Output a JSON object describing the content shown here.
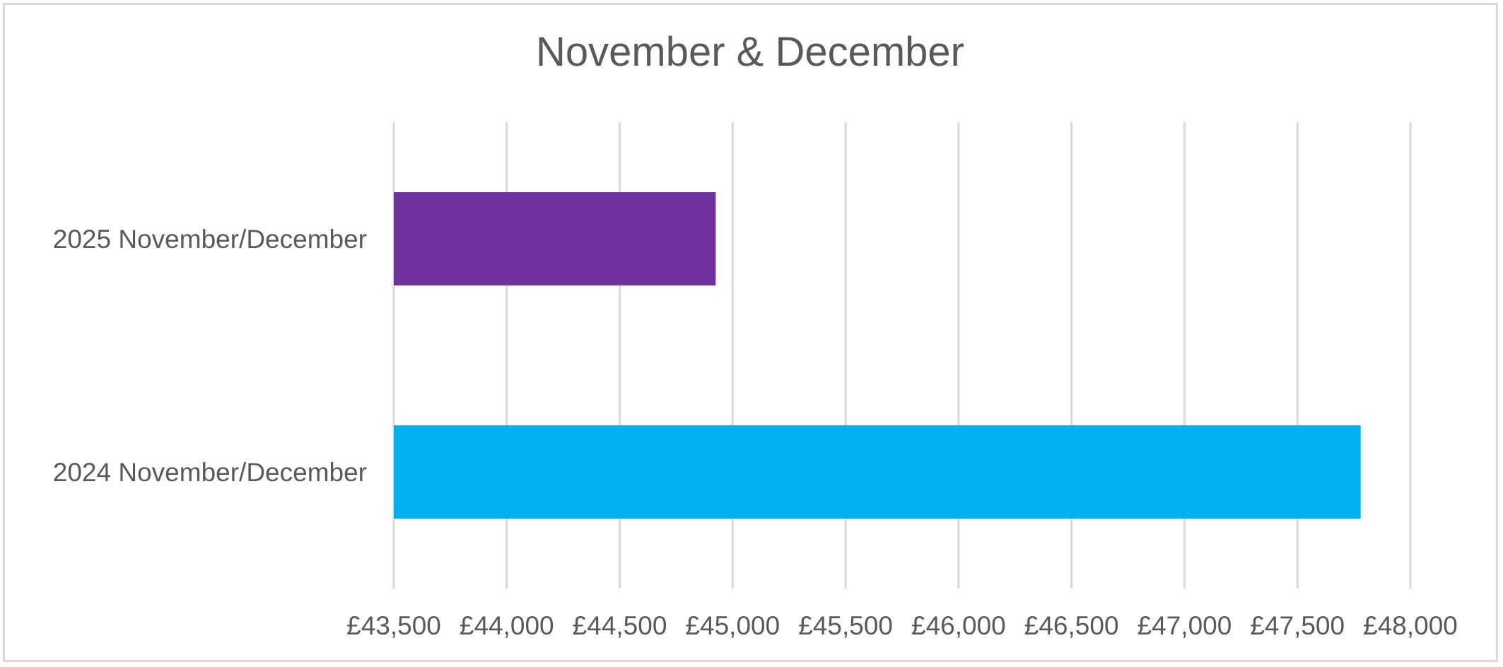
{
  "chart_data": {
    "type": "bar",
    "orientation": "horizontal",
    "title": "November & December",
    "categories": [
      "2025 November/December",
      "2024 November/December"
    ],
    "values": [
      44925,
      47780
    ],
    "colors": [
      "#7030a0",
      "#00b0f0"
    ],
    "xlim": [
      43500,
      48000
    ],
    "x_ticks": [
      43500,
      44000,
      44500,
      45000,
      45500,
      46000,
      46500,
      47000,
      47500,
      48000
    ],
    "x_tick_labels": [
      "£43,500",
      "£44,000",
      "£44,500",
      "£45,000",
      "£45,500",
      "£46,000",
      "£46,500",
      "£47,000",
      "£47,500",
      "£48,000"
    ],
    "grid": "vertical",
    "gridline_color": "#d9d9d9",
    "text_color": "#595959",
    "legend": "none"
  }
}
